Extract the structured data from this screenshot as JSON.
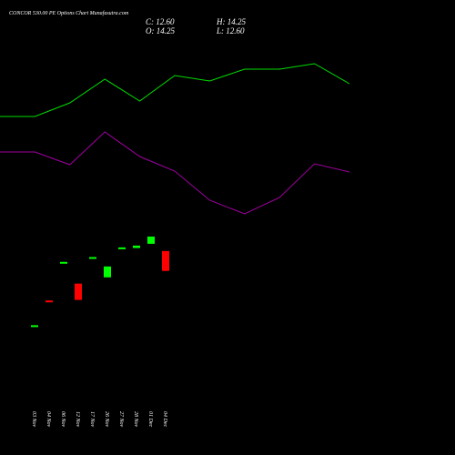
{
  "chart_data": [
    {
      "type": "candlestick",
      "title": "CONCOR 530.00 PE Options Chart Munafasutra.com",
      "annotations": [
        "C: 12.60",
        "H: 14.25",
        "O: 14.25",
        "L: 12.60"
      ],
      "categories": [
        "03 Nov",
        "04 Nov",
        "06 Nov",
        "12 Nov",
        "17 Nov",
        "26 Nov",
        "27 Nov",
        "28 Nov",
        "01 Dec",
        "04 Dec"
      ],
      "open": [
        8.05,
        10.15,
        13.3,
        11.55,
        13.7,
        12.07,
        14.5,
        14.5,
        14.85,
        14.25
      ],
      "high": [
        8.1,
        10.15,
        13.35,
        11.55,
        13.75,
        12.97,
        14.55,
        14.7,
        15.45,
        14.25
      ],
      "low": [
        8.05,
        10.1,
        13.3,
        10.2,
        13.7,
        12.07,
        14.5,
        14.5,
        14.85,
        12.6
      ],
      "close": [
        8.1,
        10.1,
        13.35,
        10.2,
        13.75,
        12.97,
        14.55,
        14.7,
        15.45,
        12.6
      ],
      "up_color": "#00ff00",
      "down_color": "#ff0000",
      "ylim": [
        7,
        16.2
      ]
    },
    {
      "type": "line",
      "series": [
        {
          "color": "#00dd00",
          "values": [
            48.8,
            48.8,
            54.8,
            65.2,
            55.6,
            66.8,
            64.4,
            69.6,
            69.6,
            72,
            63.2
          ]
        },
        {
          "color": "#a000a0",
          "values": [
            33.2,
            33.2,
            27.6,
            42,
            31.2,
            24.8,
            12,
            6,
            13.2,
            28,
            24.4
          ]
        }
      ],
      "ylim": [
        0,
        100
      ]
    }
  ]
}
